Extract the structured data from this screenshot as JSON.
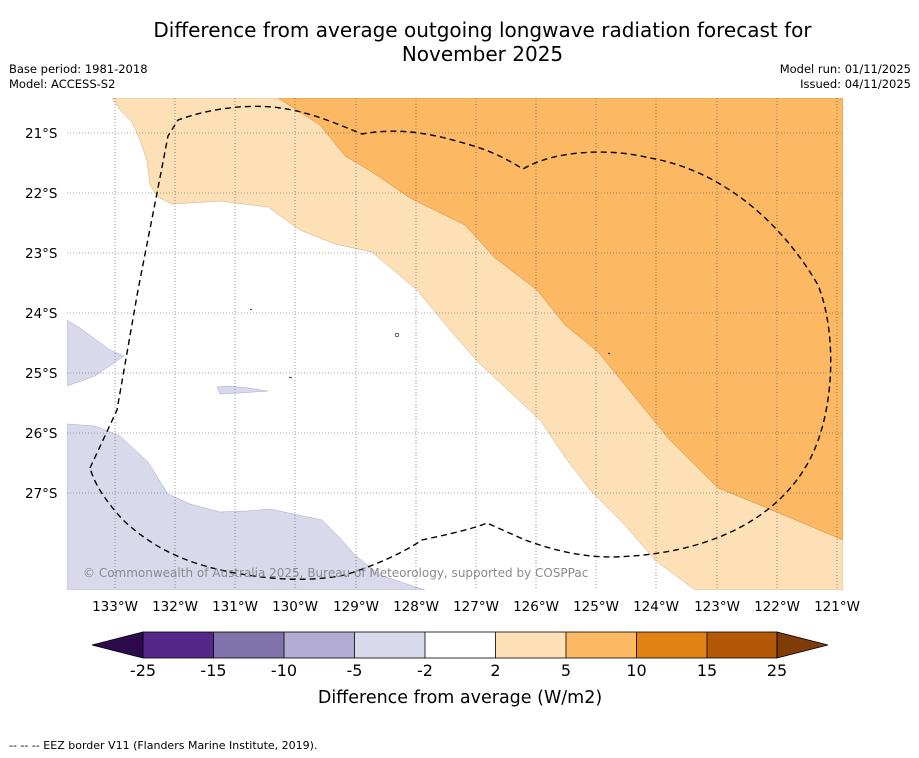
{
  "title_line1": "Difference from average outgoing longwave radiation forecast for",
  "title_line2": "November 2025",
  "meta": {
    "base_period": "Base period: 1981-2018",
    "model": "Model: ACCESS-S2",
    "model_run": "Model run: 01/11/2025",
    "issued": "Issued: 04/11/2025"
  },
  "map": {
    "lat_labels": [
      "21°S",
      "22°S",
      "23°S",
      "24°S",
      "25°S",
      "26°S",
      "27°S"
    ],
    "lon_labels": [
      "133°W",
      "132°W",
      "131°W",
      "130°W",
      "129°W",
      "128°W",
      "127°W",
      "126°W",
      "125°W",
      "124°W",
      "123°W",
      "122°W",
      "121°W"
    ],
    "credit": "© Commonwealth of Australia 2025, Bureau of Meteorology, supported by COSPPac"
  },
  "colorbar": {
    "ticks": [
      "-25",
      "-15",
      "-10",
      "-5",
      "-2",
      "2",
      "5",
      "10",
      "15",
      "25"
    ],
    "label": "Difference from average (W/m2)",
    "colors": [
      "#2d0a4e",
      "#542788",
      "#8073ac",
      "#b2abd2",
      "#d8daeb",
      "#ffffff",
      "#fee0b6",
      "#fdb863",
      "#e08214",
      "#b35806",
      "#7f3b08"
    ]
  },
  "legend": {
    "eez": "--  --  -- EEZ border V11 (Flanders Marine Institute, 2019)."
  }
}
